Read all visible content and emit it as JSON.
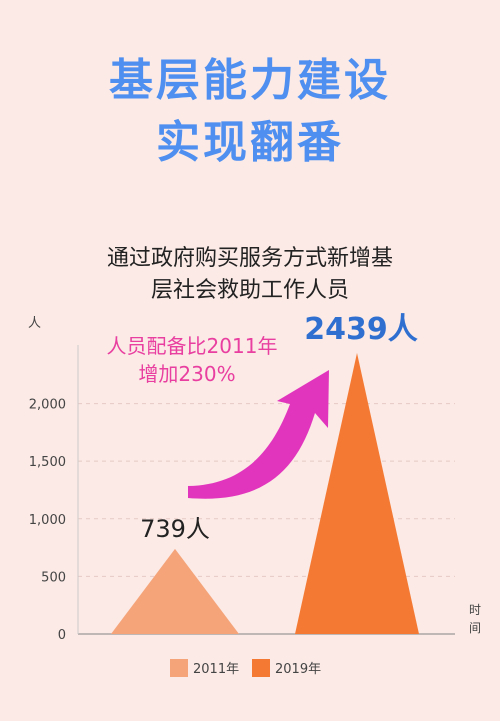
{
  "header": {
    "title_line1": "基层能力建设",
    "title_line2": "实现翻番",
    "subtitle_line1": "通过政府购买服务方式新增基",
    "subtitle_line2": "层社会救助工作人员"
  },
  "annotation": {
    "line1": "人员配备比2011年",
    "line2": "增加230%",
    "color": "#e93fa0"
  },
  "arrow_icon": "curved-up-arrow",
  "chart_data": {
    "type": "bar",
    "categories": [
      "2011年",
      "2019年"
    ],
    "values": [
      739,
      2439
    ],
    "data_labels": [
      "739人",
      "2439人"
    ],
    "colors": [
      "#f5a47a",
      "#f47a34"
    ],
    "yticks": [
      "0",
      "500",
      "1,000",
      "1,500",
      "2,000"
    ],
    "ytick_values": [
      0,
      500,
      1000,
      1500,
      2000
    ],
    "ylabel": "人",
    "xlabel": "时间",
    "ylim": [
      0,
      2439
    ],
    "grid": true,
    "legend": "bottom"
  }
}
